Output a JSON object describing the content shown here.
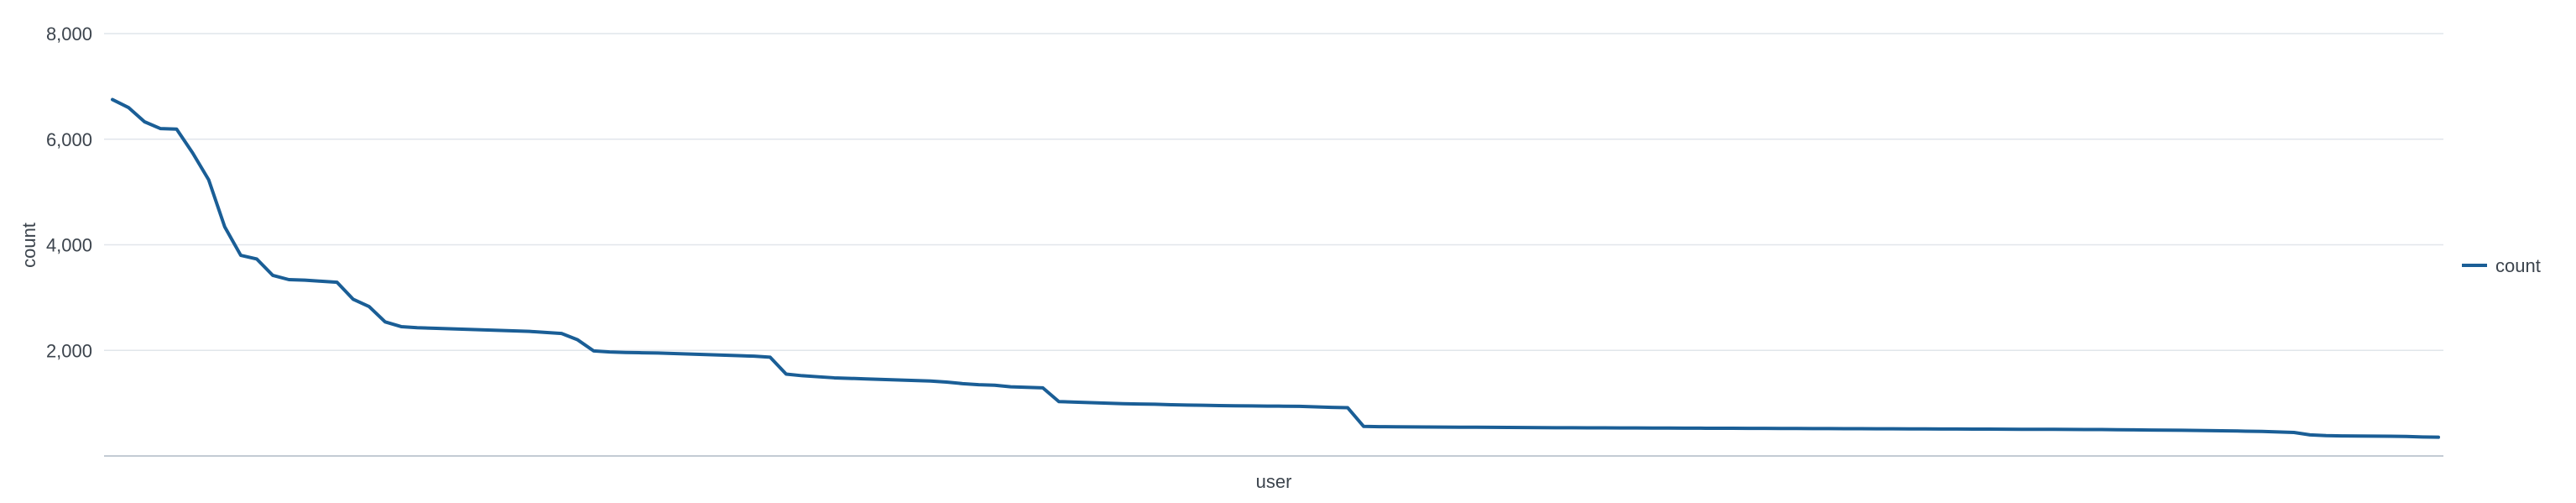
{
  "chart_data": {
    "type": "line",
    "xlabel": "user",
    "ylabel": "count",
    "ylim": [
      0,
      8000
    ],
    "yticks": [
      2000,
      4000,
      6000,
      8000
    ],
    "ytick_labels": [
      "2,000",
      "4,000",
      "6,000",
      "8,000"
    ],
    "grid": true,
    "legend_position": "right",
    "x_tick_labels_shown": false,
    "point_count": 146,
    "series": [
      {
        "name": "count",
        "color": "#1a5e96",
        "values": [
          6750,
          6600,
          6330,
          6200,
          6190,
          5740,
          5230,
          4340,
          3800,
          3730,
          3420,
          3340,
          3330,
          3310,
          3290,
          2970,
          2830,
          2540,
          2450,
          2430,
          2420,
          2410,
          2400,
          2390,
          2380,
          2370,
          2360,
          2340,
          2320,
          2200,
          1990,
          1970,
          1960,
          1955,
          1950,
          1940,
          1930,
          1920,
          1910,
          1900,
          1890,
          1870,
          1550,
          1520,
          1500,
          1480,
          1470,
          1460,
          1450,
          1440,
          1430,
          1420,
          1400,
          1370,
          1350,
          1340,
          1310,
          1300,
          1290,
          1030,
          1020,
          1010,
          1000,
          990,
          985,
          980,
          970,
          965,
          960,
          955,
          950,
          948,
          945,
          943,
          940,
          930,
          920,
          915,
          560,
          555,
          552,
          550,
          548,
          546,
          545,
          544,
          542,
          540,
          538,
          536,
          535,
          534,
          533,
          532,
          531,
          530,
          529,
          528,
          527,
          526,
          525,
          524,
          523,
          522,
          521,
          520,
          519,
          518,
          517,
          516,
          515,
          514,
          513,
          512,
          511,
          510,
          509,
          508,
          507,
          506,
          505,
          504,
          503,
          502,
          500,
          498,
          495,
          492,
          490,
          487,
          484,
          480,
          475,
          470,
          465,
          455,
          445,
          400,
          385,
          380,
          378,
          376,
          374,
          370,
          360,
          355
        ]
      }
    ]
  }
}
